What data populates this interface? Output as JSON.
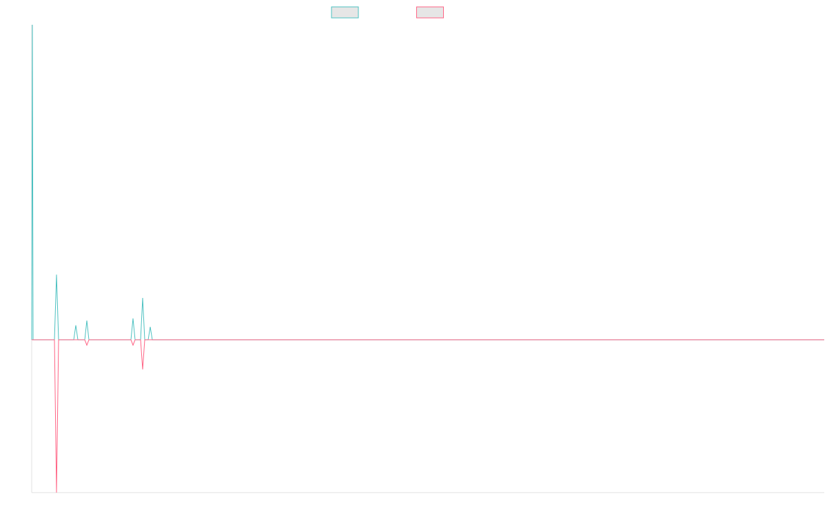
{
  "chart_data": {
    "type": "line",
    "x": [
      0,
      1,
      2,
      33,
      36,
      39,
      61,
      64,
      67,
      77,
      80,
      83,
      122,
      144,
      147,
      150,
      158,
      161,
      164,
      169,
      172,
      175,
      225,
      1150
    ],
    "series": [
      {
        "color": "#4bc0c0",
        "values": [
          0,
          100,
          0,
          0,
          20.7,
          0,
          0,
          4.6,
          0,
          0,
          6.1,
          0,
          0,
          0,
          6.8,
          0,
          0,
          13.3,
          0,
          0,
          4.1,
          0,
          0,
          0
        ]
      },
      {
        "color": "#ff6384",
        "values": [
          0,
          0,
          0,
          0,
          -48.5,
          0,
          0,
          0,
          0,
          0,
          -1.7,
          0,
          0,
          0,
          -1.7,
          0,
          0,
          -9.4,
          0,
          0,
          0,
          0,
          0,
          0
        ]
      }
    ],
    "xlim": [
      0,
      1150
    ],
    "ylim": [
      -48.5,
      100
    ],
    "legend": "top"
  }
}
